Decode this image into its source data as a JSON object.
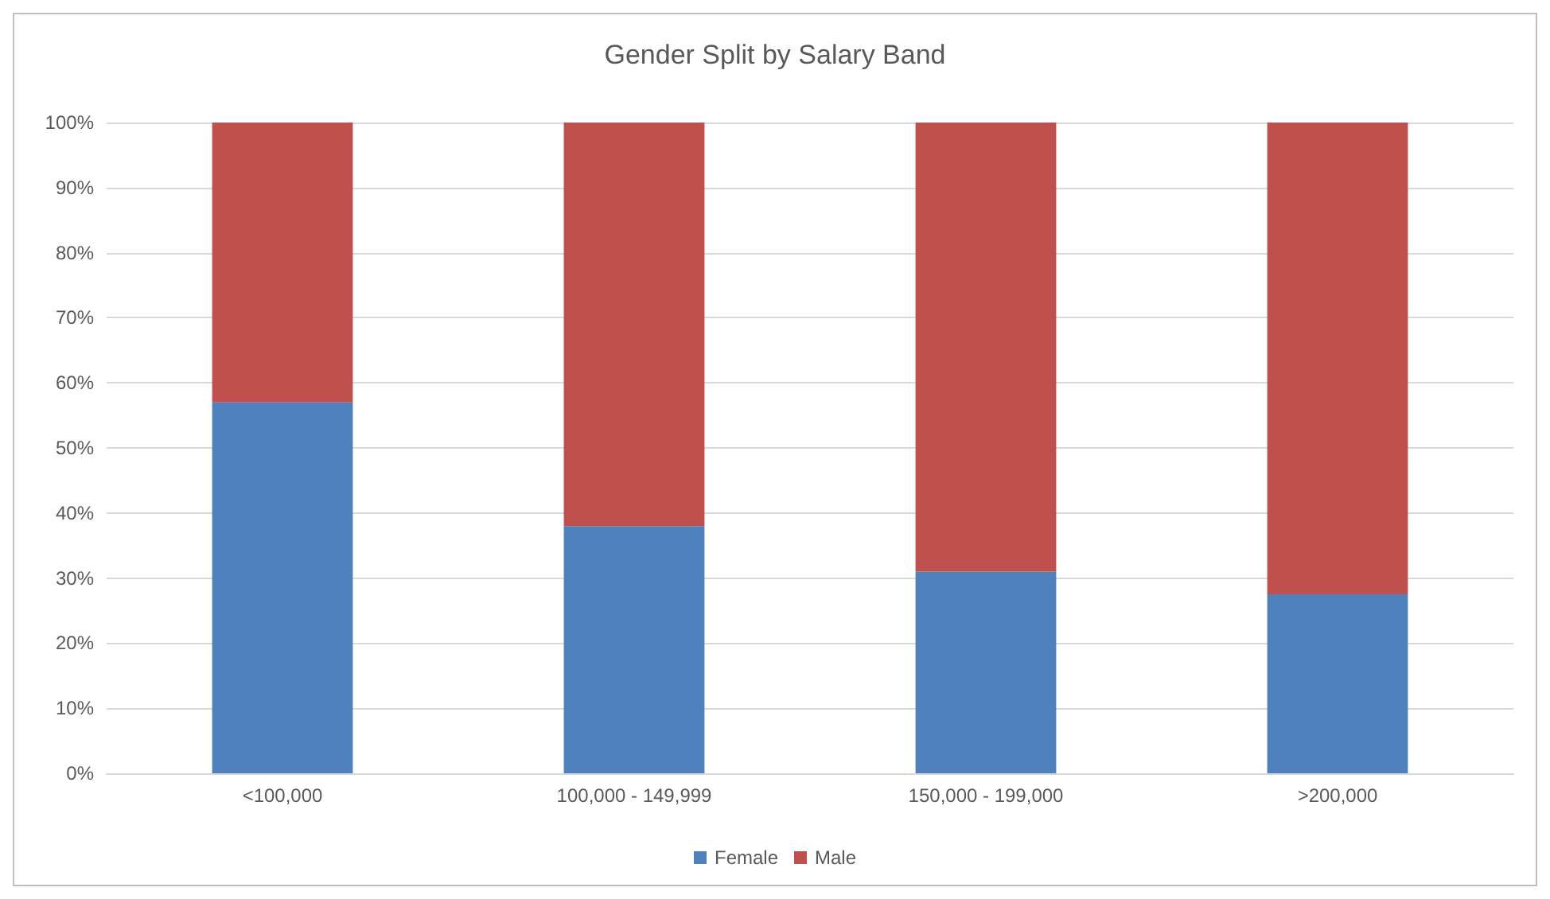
{
  "chart_data": {
    "type": "bar",
    "title": "Gender Split by Salary Band",
    "categories": [
      "<100,000",
      "100,000 - 149,999",
      "150,000 - 199,000",
      ">200,000"
    ],
    "series": [
      {
        "name": "Female",
        "color": "#4f81bd",
        "values": [
          57,
          38,
          31,
          27.5
        ]
      },
      {
        "name": "Male",
        "color": "#c0504d",
        "values": [
          43,
          62,
          69,
          72.5
        ]
      }
    ],
    "stacked": true,
    "ylim": [
      0,
      100
    ],
    "yticks": [
      {
        "value": 0,
        "label": "0%"
      },
      {
        "value": 10,
        "label": "10%"
      },
      {
        "value": 20,
        "label": "20%"
      },
      {
        "value": 30,
        "label": "30%"
      },
      {
        "value": 40,
        "label": "40%"
      },
      {
        "value": 50,
        "label": "50%"
      },
      {
        "value": 60,
        "label": "60%"
      },
      {
        "value": 70,
        "label": "70%"
      },
      {
        "value": 80,
        "label": "80%"
      },
      {
        "value": 90,
        "label": "90%"
      },
      {
        "value": 100,
        "label": "100%"
      }
    ],
    "grid": "y",
    "legend": "bottom"
  }
}
